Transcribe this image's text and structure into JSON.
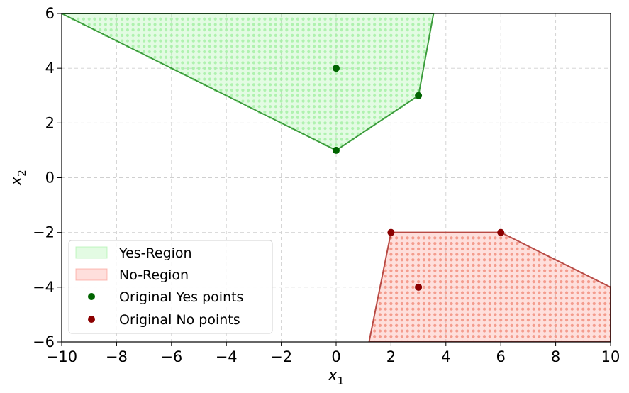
{
  "chart_data": {
    "type": "scatter",
    "xlabel": "x",
    "xlabel_sub": "1",
    "ylabel": "x",
    "ylabel_sub": "2",
    "xlim": [
      -10,
      10
    ],
    "ylim": [
      -6,
      6
    ],
    "xticks": [
      -10,
      -8,
      -6,
      -4,
      -2,
      0,
      2,
      4,
      6,
      8,
      10
    ],
    "yticks": [
      -6,
      -4,
      -2,
      0,
      2,
      4,
      6
    ],
    "xtick_labels": [
      "−10",
      "−8",
      "−6",
      "−4",
      "−2",
      "0",
      "2",
      "4",
      "6",
      "8",
      "10"
    ],
    "ytick_labels": [
      "−6",
      "−4",
      "−2",
      "0",
      "2",
      "4",
      "6"
    ],
    "grid": true,
    "legend_position": "lower-left",
    "regions": [
      {
        "name": "Yes-Region",
        "fill_color": "#90ee90",
        "edge_color": "#3c9c3c",
        "dot_color": "#a6f0a6",
        "polygon": [
          [
            -10,
            6
          ],
          [
            0,
            1
          ],
          [
            3,
            3
          ],
          [
            3.55,
            6
          ]
        ]
      },
      {
        "name": "No-Region",
        "fill_color": "#fa8072",
        "edge_color": "#b84a44",
        "dot_color": "#f2907f",
        "polygon": [
          [
            1.2,
            -6
          ],
          [
            2,
            -2
          ],
          [
            6,
            -2
          ],
          [
            10,
            -4
          ],
          [
            10,
            -6
          ]
        ]
      }
    ],
    "series": [
      {
        "name": "Original Yes points",
        "color": "#006400",
        "points": [
          [
            0,
            1
          ],
          [
            3,
            3
          ],
          [
            0,
            4
          ]
        ]
      },
      {
        "name": "Original No points",
        "color": "#8b0000",
        "points": [
          [
            2,
            -2
          ],
          [
            6,
            -2
          ],
          [
            3,
            -4
          ]
        ]
      }
    ]
  }
}
